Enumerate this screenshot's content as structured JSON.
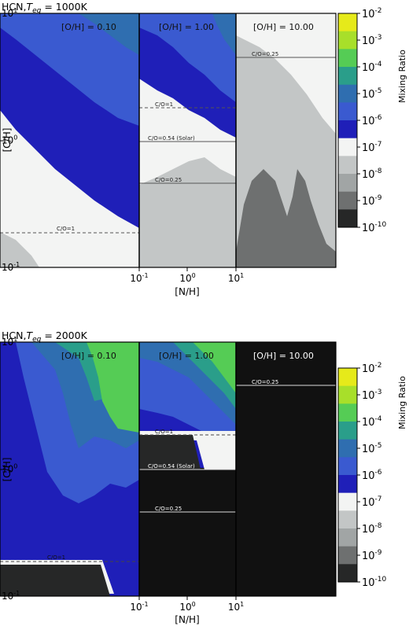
{
  "figure": {
    "colorbar": {
      "label": "Mixing Ratio",
      "ticks": [
        "10^-2",
        "10^-3",
        "10^-4",
        "10^-5",
        "10^-6",
        "10^-7",
        "10^-8",
        "10^-9",
        "10^-10"
      ],
      "colors": [
        "#e6ea1a",
        "#a8df2a",
        "#55cc55",
        "#2a9e8a",
        "#2f6eb0",
        "#3a5ad0",
        "#1f1fb8",
        "#f3f4f3",
        "#c3c6c6",
        "#a1a5a5",
        "#6e7070",
        "#262727"
      ]
    },
    "xlabel": "[N/H]",
    "ylabel": "[C/H]"
  },
  "chart_data": [
    {
      "type": "heatmap",
      "title": "HCN,T_eq = 1000K",
      "title_prefix": "HCN,",
      "title_T": "T",
      "title_sub": "eq",
      "title_suffix": " = 1000K",
      "xlabel": "[N/H]",
      "ylabel": "[C/H]",
      "x_scale": "log",
      "y_scale": "log",
      "xlim": [
        0.1,
        10
      ],
      "ylim": [
        0.1,
        10
      ],
      "y_tick_labels": [
        "10^1",
        "10^0",
        "10^-1"
      ],
      "x_tick_labels": [
        "10^-1",
        "10^0",
        "10^1"
      ],
      "panels": [
        {
          "label": "[O/H] = 0.10",
          "lines": [
            {
              "label": "C/O=1",
              "ratio": 1,
              "style": "dashed"
            }
          ]
        },
        {
          "label": "[O/H] = 1.00",
          "lines": [
            {
              "label": "C/O=1",
              "ratio": 1,
              "style": "dashed"
            },
            {
              "label": "C/O=0.54 (Solar)",
              "ratio": 0.54,
              "style": "solid"
            },
            {
              "label": "C/O=0.25",
              "ratio": 0.25,
              "style": "solid"
            }
          ]
        },
        {
          "label": "[O/H] = 10.00",
          "lines": [
            {
              "label": "C/O=0.25",
              "ratio": 0.25,
              "style": "solid"
            }
          ]
        }
      ]
    },
    {
      "type": "heatmap",
      "title": "HCN,T_eq = 2000K",
      "title_prefix": "HCN,",
      "title_T": "T",
      "title_sub": "eq",
      "title_suffix": " = 2000K",
      "xlabel": "[N/H]",
      "ylabel": "[C/H]",
      "x_scale": "log",
      "y_scale": "log",
      "xlim": [
        0.1,
        10
      ],
      "ylim": [
        0.1,
        10
      ],
      "y_tick_labels": [
        "10^1",
        "10^0",
        "10^-1"
      ],
      "x_tick_labels": [
        "10^-1",
        "10^0",
        "10^1"
      ],
      "panels": [
        {
          "label": "[O/H] = 0.10",
          "lines": [
            {
              "label": "C/O=1",
              "ratio": 1,
              "style": "dashed"
            }
          ]
        },
        {
          "label": "[O/H] = 1.00",
          "lines": [
            {
              "label": "C/O=1",
              "ratio": 1,
              "style": "dashed"
            },
            {
              "label": "C/O=0.54 (Solar)",
              "ratio": 0.54,
              "style": "solid"
            },
            {
              "label": "C/O=0.25",
              "ratio": 0.25,
              "style": "solid"
            }
          ]
        },
        {
          "label": "[O/H] = 10.00",
          "lines": [
            {
              "label": "C/O=0.25",
              "ratio": 0.25,
              "style": "solid"
            }
          ]
        }
      ]
    }
  ]
}
